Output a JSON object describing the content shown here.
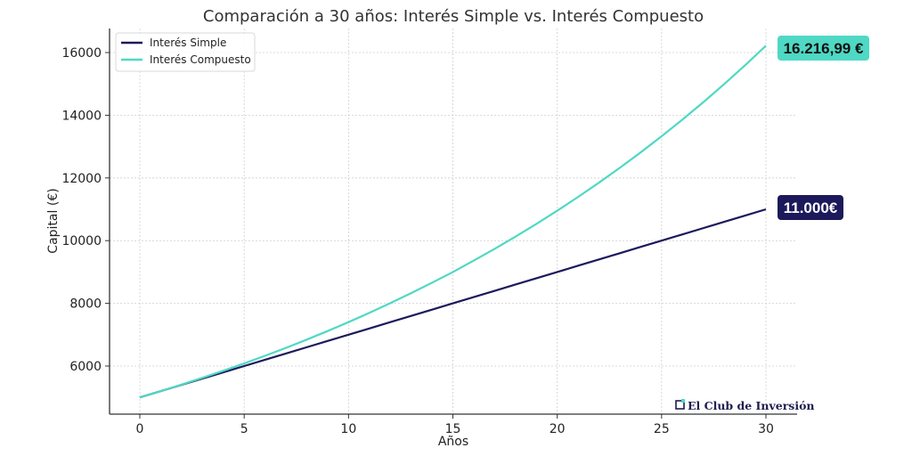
{
  "chart_data": {
    "type": "line",
    "title": "Comparación a 30 años: Interés Simple vs. Interés Compuesto",
    "xlabel": "Años",
    "ylabel": "Capital (€)",
    "xlim": [
      -1.5,
      31.5
    ],
    "ylim": [
      4450,
      16700
    ],
    "x_ticks": [
      0,
      5,
      10,
      15,
      20,
      25,
      30
    ],
    "y_ticks": [
      6000,
      8000,
      10000,
      12000,
      14000,
      16000
    ],
    "grid": true,
    "legend_position": "upper left",
    "x": [
      0,
      1,
      2,
      3,
      4,
      5,
      6,
      7,
      8,
      9,
      10,
      11,
      12,
      13,
      14,
      15,
      16,
      17,
      18,
      19,
      20,
      21,
      22,
      23,
      24,
      25,
      26,
      27,
      28,
      29,
      30
    ],
    "series": [
      {
        "name": "Interés Simple",
        "color": "#1c1a5a",
        "values": [
          5000,
          5200,
          5400,
          5600,
          5800,
          6000,
          6200,
          6400,
          6600,
          6800,
          7000,
          7200,
          7400,
          7600,
          7800,
          8000,
          8200,
          8400,
          8600,
          8800,
          9000,
          9200,
          9400,
          9600,
          9800,
          10000,
          10200,
          10400,
          10600,
          10800,
          11000
        ]
      },
      {
        "name": "Interés Compuesto",
        "color": "#4fd8c4",
        "values": [
          5000,
          5200,
          5408,
          5624.32,
          5849.29,
          6083.26,
          6326.6,
          6579.66,
          6842.85,
          7116.56,
          7401.22,
          7697.27,
          8005.16,
          8325.37,
          8658.38,
          8998.72,
          9363.91,
          9738.46,
          10128.0,
          10533.08,
          10955.62,
          11393.85,
          11849.6,
          12323.59,
          12816.53,
          13329.19,
          13862.36,
          14416.85,
          14993.53,
          15593.27,
          16216.99
        ]
      }
    ],
    "annotations": [
      {
        "text": "16.216,99 €",
        "series": "Interés Compuesto",
        "x": 30,
        "y": 16216.99,
        "bg": "#4fd8c4",
        "fg": "#111111"
      },
      {
        "text": "11.000€",
        "series": "Interés Simple",
        "x": 30,
        "y": 11000,
        "bg": "#1c1a5a",
        "fg": "#ffffff"
      }
    ],
    "watermark": "El Club de Inversión"
  }
}
